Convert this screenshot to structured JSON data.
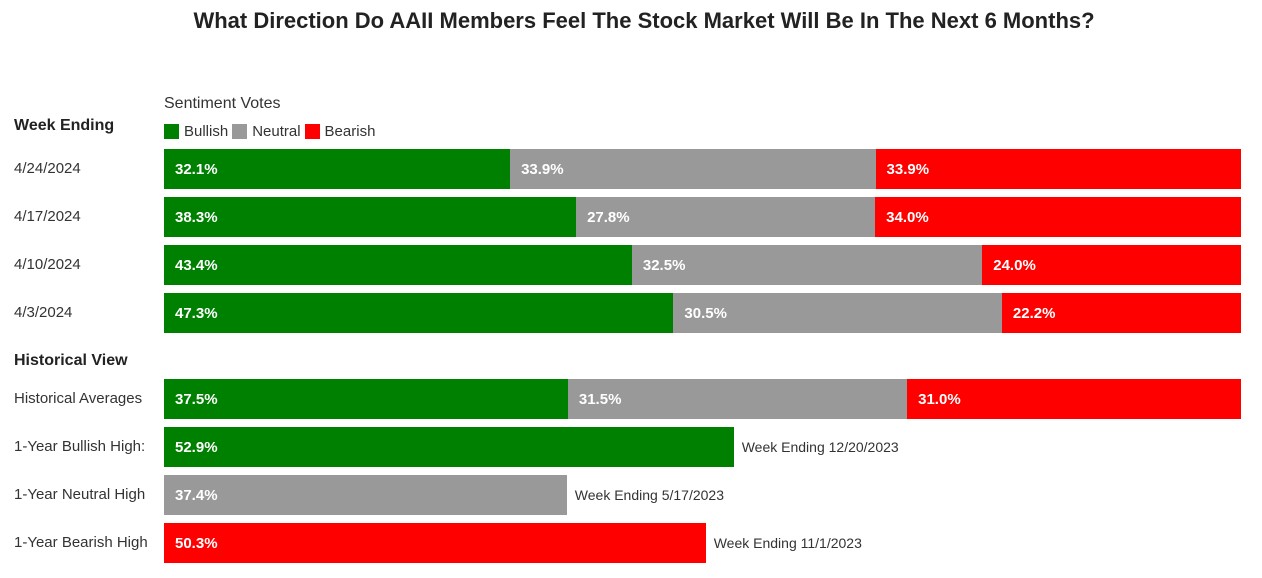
{
  "chart_data": {
    "type": "bar",
    "title": "What Direction Do AAII Members Feel The Stock Market Will Be In The Next 6 Months?",
    "legend_title": "Sentiment Votes",
    "legend": [
      {
        "name": "Bullish",
        "color": "#008000"
      },
      {
        "name": "Neutral",
        "color": "#999999"
      },
      {
        "name": "Bearish",
        "color": "#ff0000"
      }
    ],
    "weekly_header": "Week Ending",
    "weeks": [
      {
        "label": "4/24/2024",
        "bullish": 32.1,
        "neutral": 33.9,
        "bearish": 33.9,
        "bullish_label": "32.1%",
        "neutral_label": "33.9%",
        "bearish_label": "33.9%"
      },
      {
        "label": "4/17/2024",
        "bullish": 38.3,
        "neutral": 27.8,
        "bearish": 34.0,
        "bullish_label": "38.3%",
        "neutral_label": "27.8%",
        "bearish_label": "34.0%"
      },
      {
        "label": "4/10/2024",
        "bullish": 43.4,
        "neutral": 32.5,
        "bearish": 24.0,
        "bullish_label": "43.4%",
        "neutral_label": "32.5%",
        "bearish_label": "24.0%"
      },
      {
        "label": "4/3/2024",
        "bullish": 47.3,
        "neutral": 30.5,
        "bearish": 22.2,
        "bullish_label": "47.3%",
        "neutral_label": "30.5%",
        "bearish_label": "22.2%"
      }
    ],
    "historical_header": "Historical View",
    "historical_average": {
      "label": "Historical Averages",
      "bullish": 37.5,
      "neutral": 31.5,
      "bearish": 31.0,
      "bullish_label": "37.5%",
      "neutral_label": "31.5%",
      "bearish_label": "31.0%"
    },
    "highs": [
      {
        "label": "1-Year Bullish High:",
        "kind": "bullish",
        "value": 52.9,
        "value_label": "52.9%",
        "note": "Week Ending 12/20/2023"
      },
      {
        "label": "1-Year Neutral High",
        "kind": "neutral",
        "value": 37.4,
        "value_label": "37.4%",
        "note": "Week Ending 5/17/2023"
      },
      {
        "label": "1-Year Bearish High",
        "kind": "bearish",
        "value": 50.3,
        "value_label": "50.3%",
        "note": "Week Ending 11/1/2023"
      }
    ]
  }
}
